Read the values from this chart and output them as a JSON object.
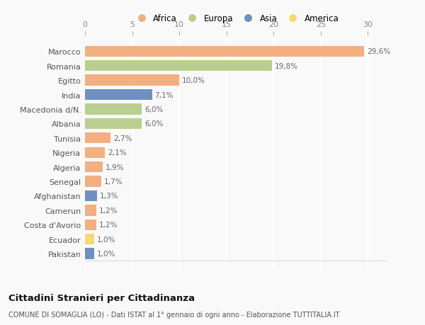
{
  "countries": [
    "Marocco",
    "Romania",
    "Egitto",
    "India",
    "Macedonia d/N.",
    "Albania",
    "Tunisia",
    "Nigeria",
    "Algeria",
    "Senegal",
    "Afghanistan",
    "Camerun",
    "Costa d'Avorio",
    "Ecuador",
    "Pakistan"
  ],
  "values": [
    29.6,
    19.8,
    10.0,
    7.1,
    6.0,
    6.0,
    2.7,
    2.1,
    1.9,
    1.7,
    1.3,
    1.2,
    1.2,
    1.0,
    1.0
  ],
  "labels": [
    "29,6%",
    "19,8%",
    "10,0%",
    "7,1%",
    "6,0%",
    "6,0%",
    "2,7%",
    "2,1%",
    "1,9%",
    "1,7%",
    "1,3%",
    "1,2%",
    "1,2%",
    "1,0%",
    "1,0%"
  ],
  "continents": [
    "Africa",
    "Europa",
    "Africa",
    "Asia",
    "Europa",
    "Europa",
    "Africa",
    "Africa",
    "Africa",
    "Africa",
    "Asia",
    "Africa",
    "Africa",
    "America",
    "Asia"
  ],
  "colors": {
    "Africa": "#F2AF80",
    "Europa": "#BACF8F",
    "Asia": "#7090BF",
    "America": "#F5D878"
  },
  "legend_order": [
    "Africa",
    "Europa",
    "Asia",
    "America"
  ],
  "xlim": [
    0,
    32
  ],
  "xticks": [
    0,
    5,
    10,
    15,
    20,
    25,
    30
  ],
  "title": "Cittadini Stranieri per Cittadinanza",
  "subtitle": "COMUNE DI SOMAGLIA (LO) - Dati ISTAT al 1° gennaio di ogni anno - Elaborazione TUTTITALIA.IT",
  "background_color": "#f9f9f9",
  "grid_color": "#ffffff",
  "bar_height": 0.75
}
